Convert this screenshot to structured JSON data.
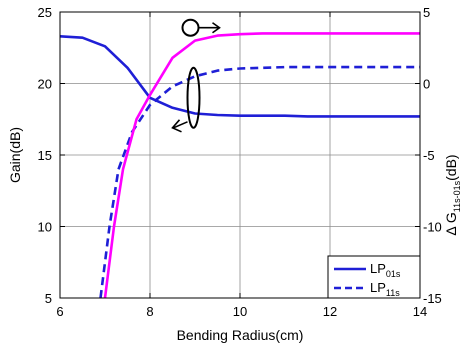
{
  "chart_data": {
    "type": "line",
    "xlabel": "Bending Radius(cm)",
    "ylabel_left": "Gain(dB)",
    "ylabel_right": "Δ G",
    "ylabel_right_sub": "11s-01s",
    "ylabel_right_unit": "(dB)",
    "xlim": [
      6,
      14
    ],
    "ylim_left": [
      5,
      25
    ],
    "ylim_right": [
      -15,
      5
    ],
    "x_ticks": [
      "6",
      "8",
      "10",
      "12",
      "14"
    ],
    "y_left_ticks": [
      "5",
      "10",
      "15",
      "20",
      "25"
    ],
    "y_right_ticks": [
      "-15",
      "-10",
      "-5",
      "0",
      "5"
    ],
    "grid": true,
    "legend_position": "bottom-right",
    "legend": [
      {
        "main": "LP",
        "sub": "01s"
      },
      {
        "main": "LP",
        "sub": "11s"
      }
    ],
    "series": [
      {
        "name": "LP01s",
        "axis": "left",
        "style": "solid",
        "color": "#1f1fd6",
        "x": [
          6.0,
          6.5,
          7.0,
          7.5,
          8.0,
          8.5,
          9.0,
          9.5,
          10.0,
          10.5,
          11.0,
          11.5,
          12.0,
          12.5,
          13.0,
          13.5,
          14.0
        ],
        "y": [
          23.3,
          23.2,
          22.6,
          21.1,
          19.0,
          18.3,
          17.9,
          17.8,
          17.75,
          17.75,
          17.75,
          17.7,
          17.7,
          17.7,
          17.7,
          17.7,
          17.7
        ]
      },
      {
        "name": "LP11s",
        "axis": "left",
        "style": "dashed",
        "color": "#1f1fd6",
        "x": [
          6.9,
          7.1,
          7.3,
          7.6,
          8.0,
          8.5,
          9.0,
          9.5,
          10.0,
          10.5,
          11.0,
          12.0,
          13.0,
          14.0
        ],
        "y": [
          5.0,
          10.0,
          14.0,
          16.6,
          18.5,
          19.8,
          20.5,
          20.9,
          21.05,
          21.1,
          21.15,
          21.15,
          21.15,
          21.15
        ]
      },
      {
        "name": "Δ G",
        "axis": "right",
        "style": "solid",
        "color": "#ff00ff",
        "x": [
          7.0,
          7.2,
          7.4,
          7.7,
          8.0,
          8.5,
          9.0,
          9.5,
          10.0,
          10.5,
          11.0,
          12.0,
          13.0,
          14.0
        ],
        "y": [
          -15.0,
          -10.0,
          -6.0,
          -2.5,
          -0.8,
          1.8,
          3.0,
          3.35,
          3.45,
          3.5,
          3.5,
          3.5,
          3.5,
          3.5
        ]
      }
    ],
    "annotations": [
      {
        "kind": "circle-arrow-right",
        "points_to": "right-axis",
        "at": {
          "x": 8.9,
          "y_right": 3.9
        }
      },
      {
        "kind": "ellipse-arrow-left",
        "points_to": "left-axis",
        "at": {
          "x": 8.3,
          "y_left": 19.0
        }
      }
    ]
  }
}
